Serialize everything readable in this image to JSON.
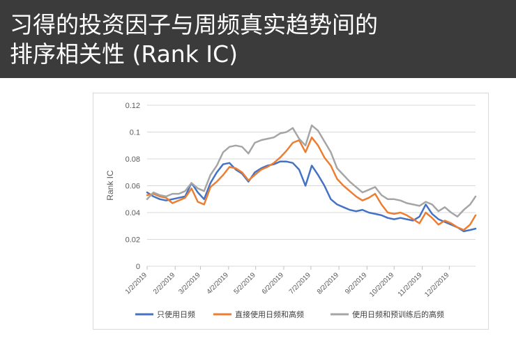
{
  "title": {
    "line1": "习得的投资因子与周频真实趋势间的",
    "line2": "排序相关性 (Rank IC)"
  },
  "chart_data": {
    "type": "line",
    "xlabel": "",
    "ylabel": "Rank IC",
    "ylim": [
      0,
      0.12
    ],
    "yticks": [
      0,
      0.02,
      0.04,
      0.06,
      0.08,
      0.1,
      0.12
    ],
    "ytick_labels": [
      "0",
      "0.02",
      "0.04",
      "0.06",
      "0.08",
      "0.1",
      "0.12"
    ],
    "x_tick_labels": [
      "1/2/2019",
      "2/2/2019",
      "3/2/2019",
      "4/2/2019",
      "5/2/2019",
      "6/2/2019",
      "7/2/2019",
      "8/2/2019",
      "9/2/2019",
      "10/2/2019",
      "11/2/2019",
      "12/2/2019"
    ],
    "x_domain": [
      "1/2/2019",
      "12/31/2019"
    ],
    "grid": "horizontal",
    "legend_position": "bottom",
    "series": [
      {
        "name": "只使用日频",
        "color": "#4472c4",
        "dates": [
          "1/2/2019",
          "1/9/2019",
          "1/16/2019",
          "1/23/2019",
          "1/30/2019",
          "2/6/2019",
          "2/13/2019",
          "2/20/2019",
          "2/27/2019",
          "3/6/2019",
          "3/13/2019",
          "3/20/2019",
          "3/27/2019",
          "4/3/2019",
          "4/10/2019",
          "4/17/2019",
          "4/24/2019",
          "5/1/2019",
          "5/8/2019",
          "5/15/2019",
          "5/22/2019",
          "5/29/2019",
          "6/5/2019",
          "6/12/2019",
          "6/19/2019",
          "6/26/2019",
          "7/3/2019",
          "7/10/2019",
          "7/17/2019",
          "7/24/2019",
          "7/31/2019",
          "8/7/2019",
          "8/14/2019",
          "8/21/2019",
          "8/28/2019",
          "9/4/2019",
          "9/11/2019",
          "9/18/2019",
          "9/25/2019",
          "10/2/2019",
          "10/9/2019",
          "10/16/2019",
          "10/23/2019",
          "10/30/2019",
          "11/6/2019",
          "11/13/2019",
          "11/20/2019",
          "11/27/2019",
          "12/4/2019",
          "12/11/2019",
          "12/18/2019",
          "12/25/2019",
          "12/31/2019"
        ],
        "values": [
          0.055,
          0.052,
          0.05,
          0.049,
          0.05,
          0.051,
          0.052,
          0.062,
          0.055,
          0.05,
          0.062,
          0.07,
          0.076,
          0.077,
          0.072,
          0.069,
          0.063,
          0.07,
          0.073,
          0.075,
          0.076,
          0.078,
          0.078,
          0.077,
          0.072,
          0.06,
          0.075,
          0.068,
          0.06,
          0.05,
          0.046,
          0.044,
          0.042,
          0.041,
          0.042,
          0.04,
          0.039,
          0.038,
          0.036,
          0.035,
          0.036,
          0.035,
          0.034,
          0.037,
          0.046,
          0.039,
          0.035,
          0.033,
          0.031,
          0.029,
          0.026,
          0.027,
          0.028
        ]
      },
      {
        "name": "直接使用日频和高频",
        "color": "#ed7d31",
        "dates": [
          "1/2/2019",
          "1/9/2019",
          "1/16/2019",
          "1/23/2019",
          "1/30/2019",
          "2/6/2019",
          "2/13/2019",
          "2/20/2019",
          "2/27/2019",
          "3/6/2019",
          "3/13/2019",
          "3/20/2019",
          "3/27/2019",
          "4/3/2019",
          "4/10/2019",
          "4/17/2019",
          "4/24/2019",
          "5/1/2019",
          "5/8/2019",
          "5/15/2019",
          "5/22/2019",
          "5/29/2019",
          "6/5/2019",
          "6/12/2019",
          "6/19/2019",
          "6/26/2019",
          "7/3/2019",
          "7/10/2019",
          "7/17/2019",
          "7/24/2019",
          "7/31/2019",
          "8/7/2019",
          "8/14/2019",
          "8/21/2019",
          "8/28/2019",
          "9/4/2019",
          "9/11/2019",
          "9/18/2019",
          "9/25/2019",
          "10/2/2019",
          "10/9/2019",
          "10/16/2019",
          "10/23/2019",
          "10/30/2019",
          "11/6/2019",
          "11/13/2019",
          "11/20/2019",
          "11/27/2019",
          "12/4/2019",
          "12/11/2019",
          "12/18/2019",
          "12/25/2019",
          "12/31/2019"
        ],
        "values": [
          0.053,
          0.054,
          0.052,
          0.051,
          0.047,
          0.049,
          0.051,
          0.058,
          0.048,
          0.046,
          0.059,
          0.063,
          0.068,
          0.074,
          0.073,
          0.07,
          0.064,
          0.068,
          0.072,
          0.074,
          0.077,
          0.081,
          0.086,
          0.092,
          0.094,
          0.085,
          0.096,
          0.09,
          0.081,
          0.075,
          0.065,
          0.06,
          0.056,
          0.052,
          0.049,
          0.051,
          0.054,
          0.046,
          0.04,
          0.039,
          0.04,
          0.038,
          0.035,
          0.032,
          0.04,
          0.036,
          0.031,
          0.034,
          0.032,
          0.029,
          0.027,
          0.031,
          0.038
        ]
      },
      {
        "name": "使用日频和预训练后的高频",
        "color": "#a5a5a5",
        "dates": [
          "1/2/2019",
          "1/9/2019",
          "1/16/2019",
          "1/23/2019",
          "1/30/2019",
          "2/6/2019",
          "2/13/2019",
          "2/20/2019",
          "2/27/2019",
          "3/6/2019",
          "3/13/2019",
          "3/20/2019",
          "3/27/2019",
          "4/3/2019",
          "4/10/2019",
          "4/17/2019",
          "4/24/2019",
          "5/1/2019",
          "5/8/2019",
          "5/15/2019",
          "5/22/2019",
          "5/29/2019",
          "6/5/2019",
          "6/12/2019",
          "6/19/2019",
          "6/26/2019",
          "7/3/2019",
          "7/10/2019",
          "7/17/2019",
          "7/24/2019",
          "7/31/2019",
          "8/7/2019",
          "8/14/2019",
          "8/21/2019",
          "8/28/2019",
          "9/4/2019",
          "9/11/2019",
          "9/18/2019",
          "9/25/2019",
          "10/2/2019",
          "10/9/2019",
          "10/16/2019",
          "10/23/2019",
          "10/30/2019",
          "11/6/2019",
          "11/13/2019",
          "11/20/2019",
          "11/27/2019",
          "12/4/2019",
          "12/11/2019",
          "12/18/2019",
          "12/25/2019",
          "12/31/2019"
        ],
        "values": [
          0.05,
          0.055,
          0.053,
          0.052,
          0.054,
          0.054,
          0.056,
          0.062,
          0.058,
          0.056,
          0.068,
          0.075,
          0.085,
          0.089,
          0.09,
          0.089,
          0.084,
          0.092,
          0.094,
          0.095,
          0.096,
          0.099,
          0.1,
          0.103,
          0.095,
          0.09,
          0.105,
          0.101,
          0.093,
          0.085,
          0.073,
          0.068,
          0.063,
          0.059,
          0.055,
          0.057,
          0.059,
          0.053,
          0.05,
          0.05,
          0.049,
          0.047,
          0.046,
          0.045,
          0.048,
          0.046,
          0.041,
          0.044,
          0.04,
          0.037,
          0.042,
          0.046,
          0.052
        ]
      }
    ]
  }
}
